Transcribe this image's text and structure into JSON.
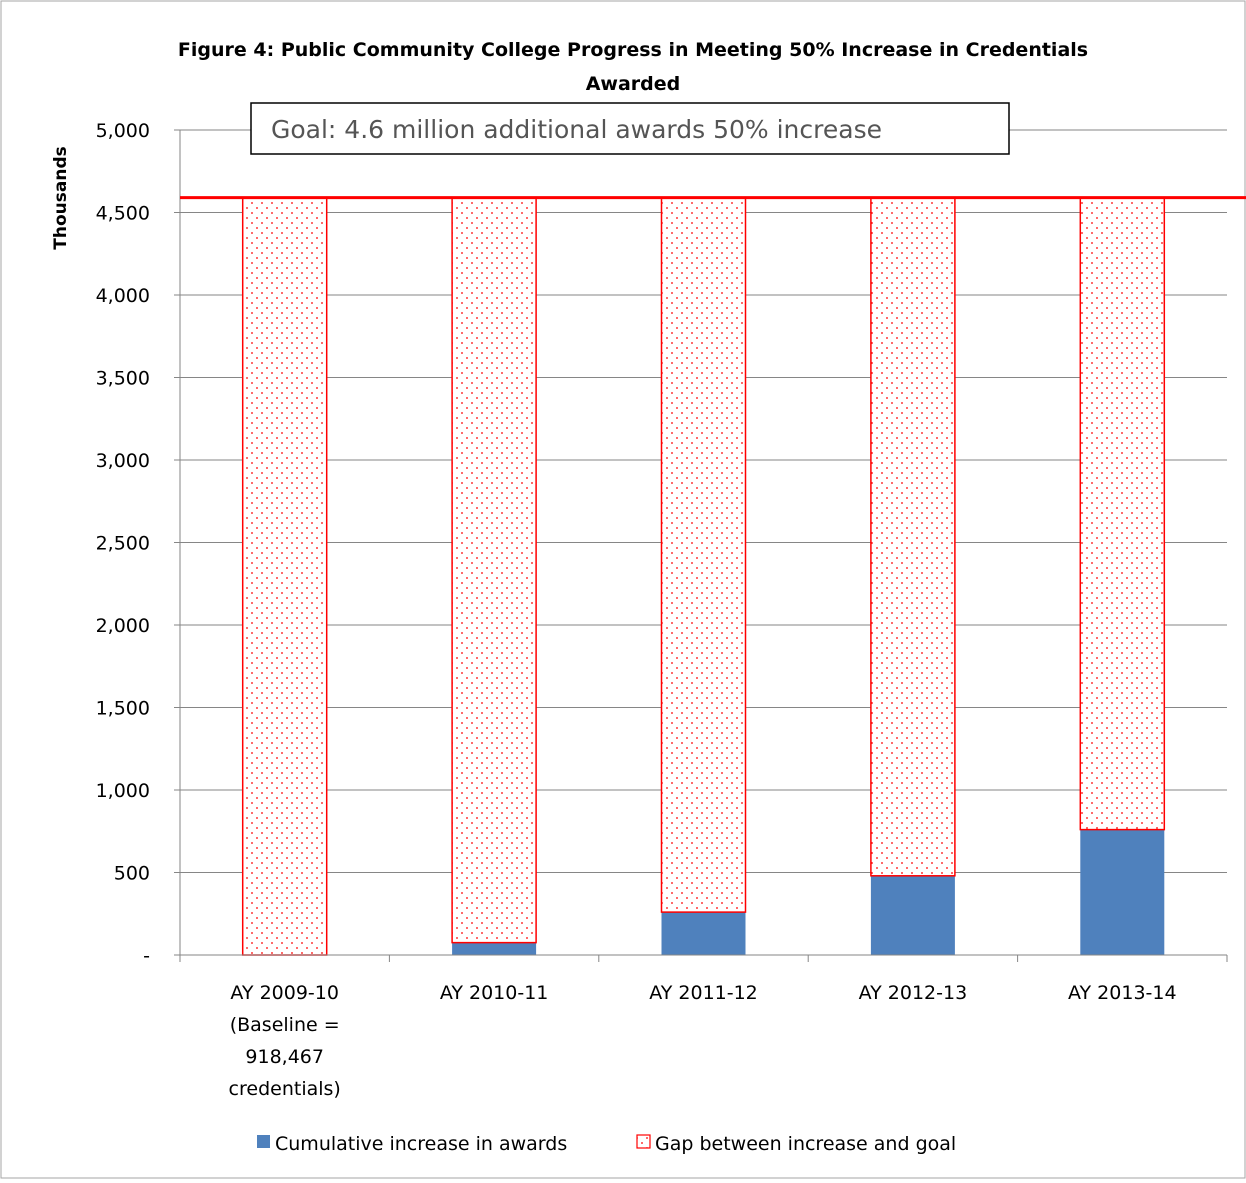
{
  "chart_data": {
    "type": "bar",
    "stacked": true,
    "title_line1": "Figure 4: Public Community College Progress in Meeting 50% Increase in Credentials",
    "title_line2": "Awarded",
    "ylabel": "Thousands",
    "ylim": [
      0,
      5000
    ],
    "yticks": [
      0,
      500,
      1000,
      1500,
      2000,
      2500,
      3000,
      3500,
      4000,
      4500,
      5000
    ],
    "ytick_labels": [
      "-",
      "500",
      "1,000",
      "1,500",
      "2,000",
      "2,500",
      "3,000",
      "3,500",
      "4,000",
      "4,500",
      "5,000"
    ],
    "grid": true,
    "categories": [
      [
        "AY 2009-10",
        "(Baseline =",
        "918,467",
        "credentials)"
      ],
      [
        "AY 2010-11"
      ],
      [
        "AY 2011-12"
      ],
      [
        "AY 2012-13"
      ],
      [
        "AY 2013-14"
      ]
    ],
    "series": [
      {
        "name": "Cumulative increase in awards",
        "color": "#4F81BD",
        "values": [
          0,
          75,
          260,
          480,
          760
        ]
      },
      {
        "name": "Gap between increase and goal",
        "color": "#FF0000",
        "pattern": "dotted",
        "values": [
          4590,
          4515,
          4330,
          4110,
          3830
        ]
      }
    ],
    "goal": {
      "value": 4590,
      "label": "Goal: 4.6 million additional awards 50% increase",
      "color": "#FF0000"
    },
    "legend_position": "bottom"
  }
}
